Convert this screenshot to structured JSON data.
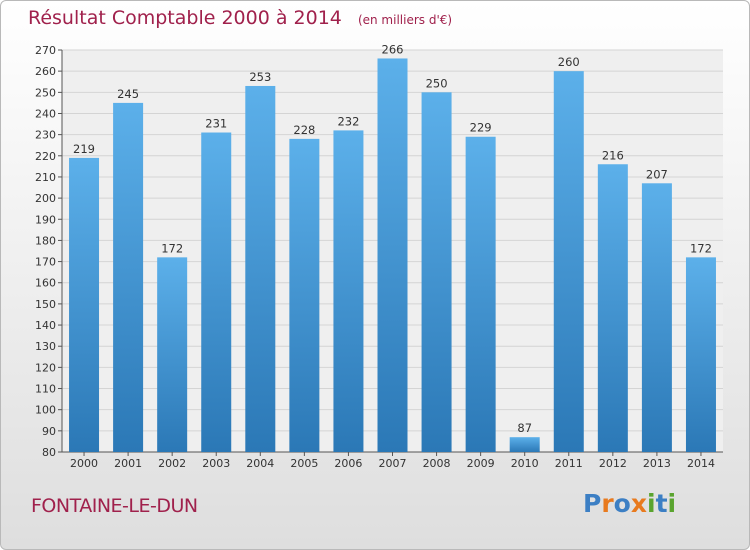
{
  "header": {
    "title": "Résultat Comptable 2000 à 2014",
    "subtitle": "(en milliers d'€)"
  },
  "footer": {
    "place": "FONTAINE-LE-DUN",
    "logo": {
      "text": "Proxiti",
      "letters": [
        "P",
        "r",
        "o",
        "x",
        "i",
        "t",
        "i"
      ],
      "colors": [
        "#3c7fc4",
        "#e87a1e",
        "#3c7fc4",
        "#e87a1e",
        "#5aa42f",
        "#3c7fc4",
        "#5aa42f"
      ]
    }
  },
  "colors": {
    "bar_top": "#5cb0ea",
    "bar_bottom": "#2b78b6",
    "title": "#a0214c"
  },
  "chart_data": {
    "type": "bar",
    "title": "Résultat Comptable 2000 à 2014",
    "subtitle": "(en milliers d'€)",
    "categories": [
      "2000",
      "2001",
      "2002",
      "2003",
      "2004",
      "2005",
      "2006",
      "2007",
      "2008",
      "2009",
      "2010",
      "2011",
      "2012",
      "2013",
      "2014"
    ],
    "values": [
      219,
      245,
      172,
      231,
      253,
      228,
      232,
      266,
      250,
      229,
      87,
      260,
      216,
      207,
      172
    ],
    "ylim": [
      80,
      270
    ],
    "yticks": [
      80,
      90,
      100,
      110,
      120,
      130,
      140,
      150,
      160,
      170,
      180,
      190,
      200,
      210,
      220,
      230,
      240,
      250,
      260,
      270
    ],
    "grid": true,
    "xlabel": "",
    "ylabel": ""
  }
}
